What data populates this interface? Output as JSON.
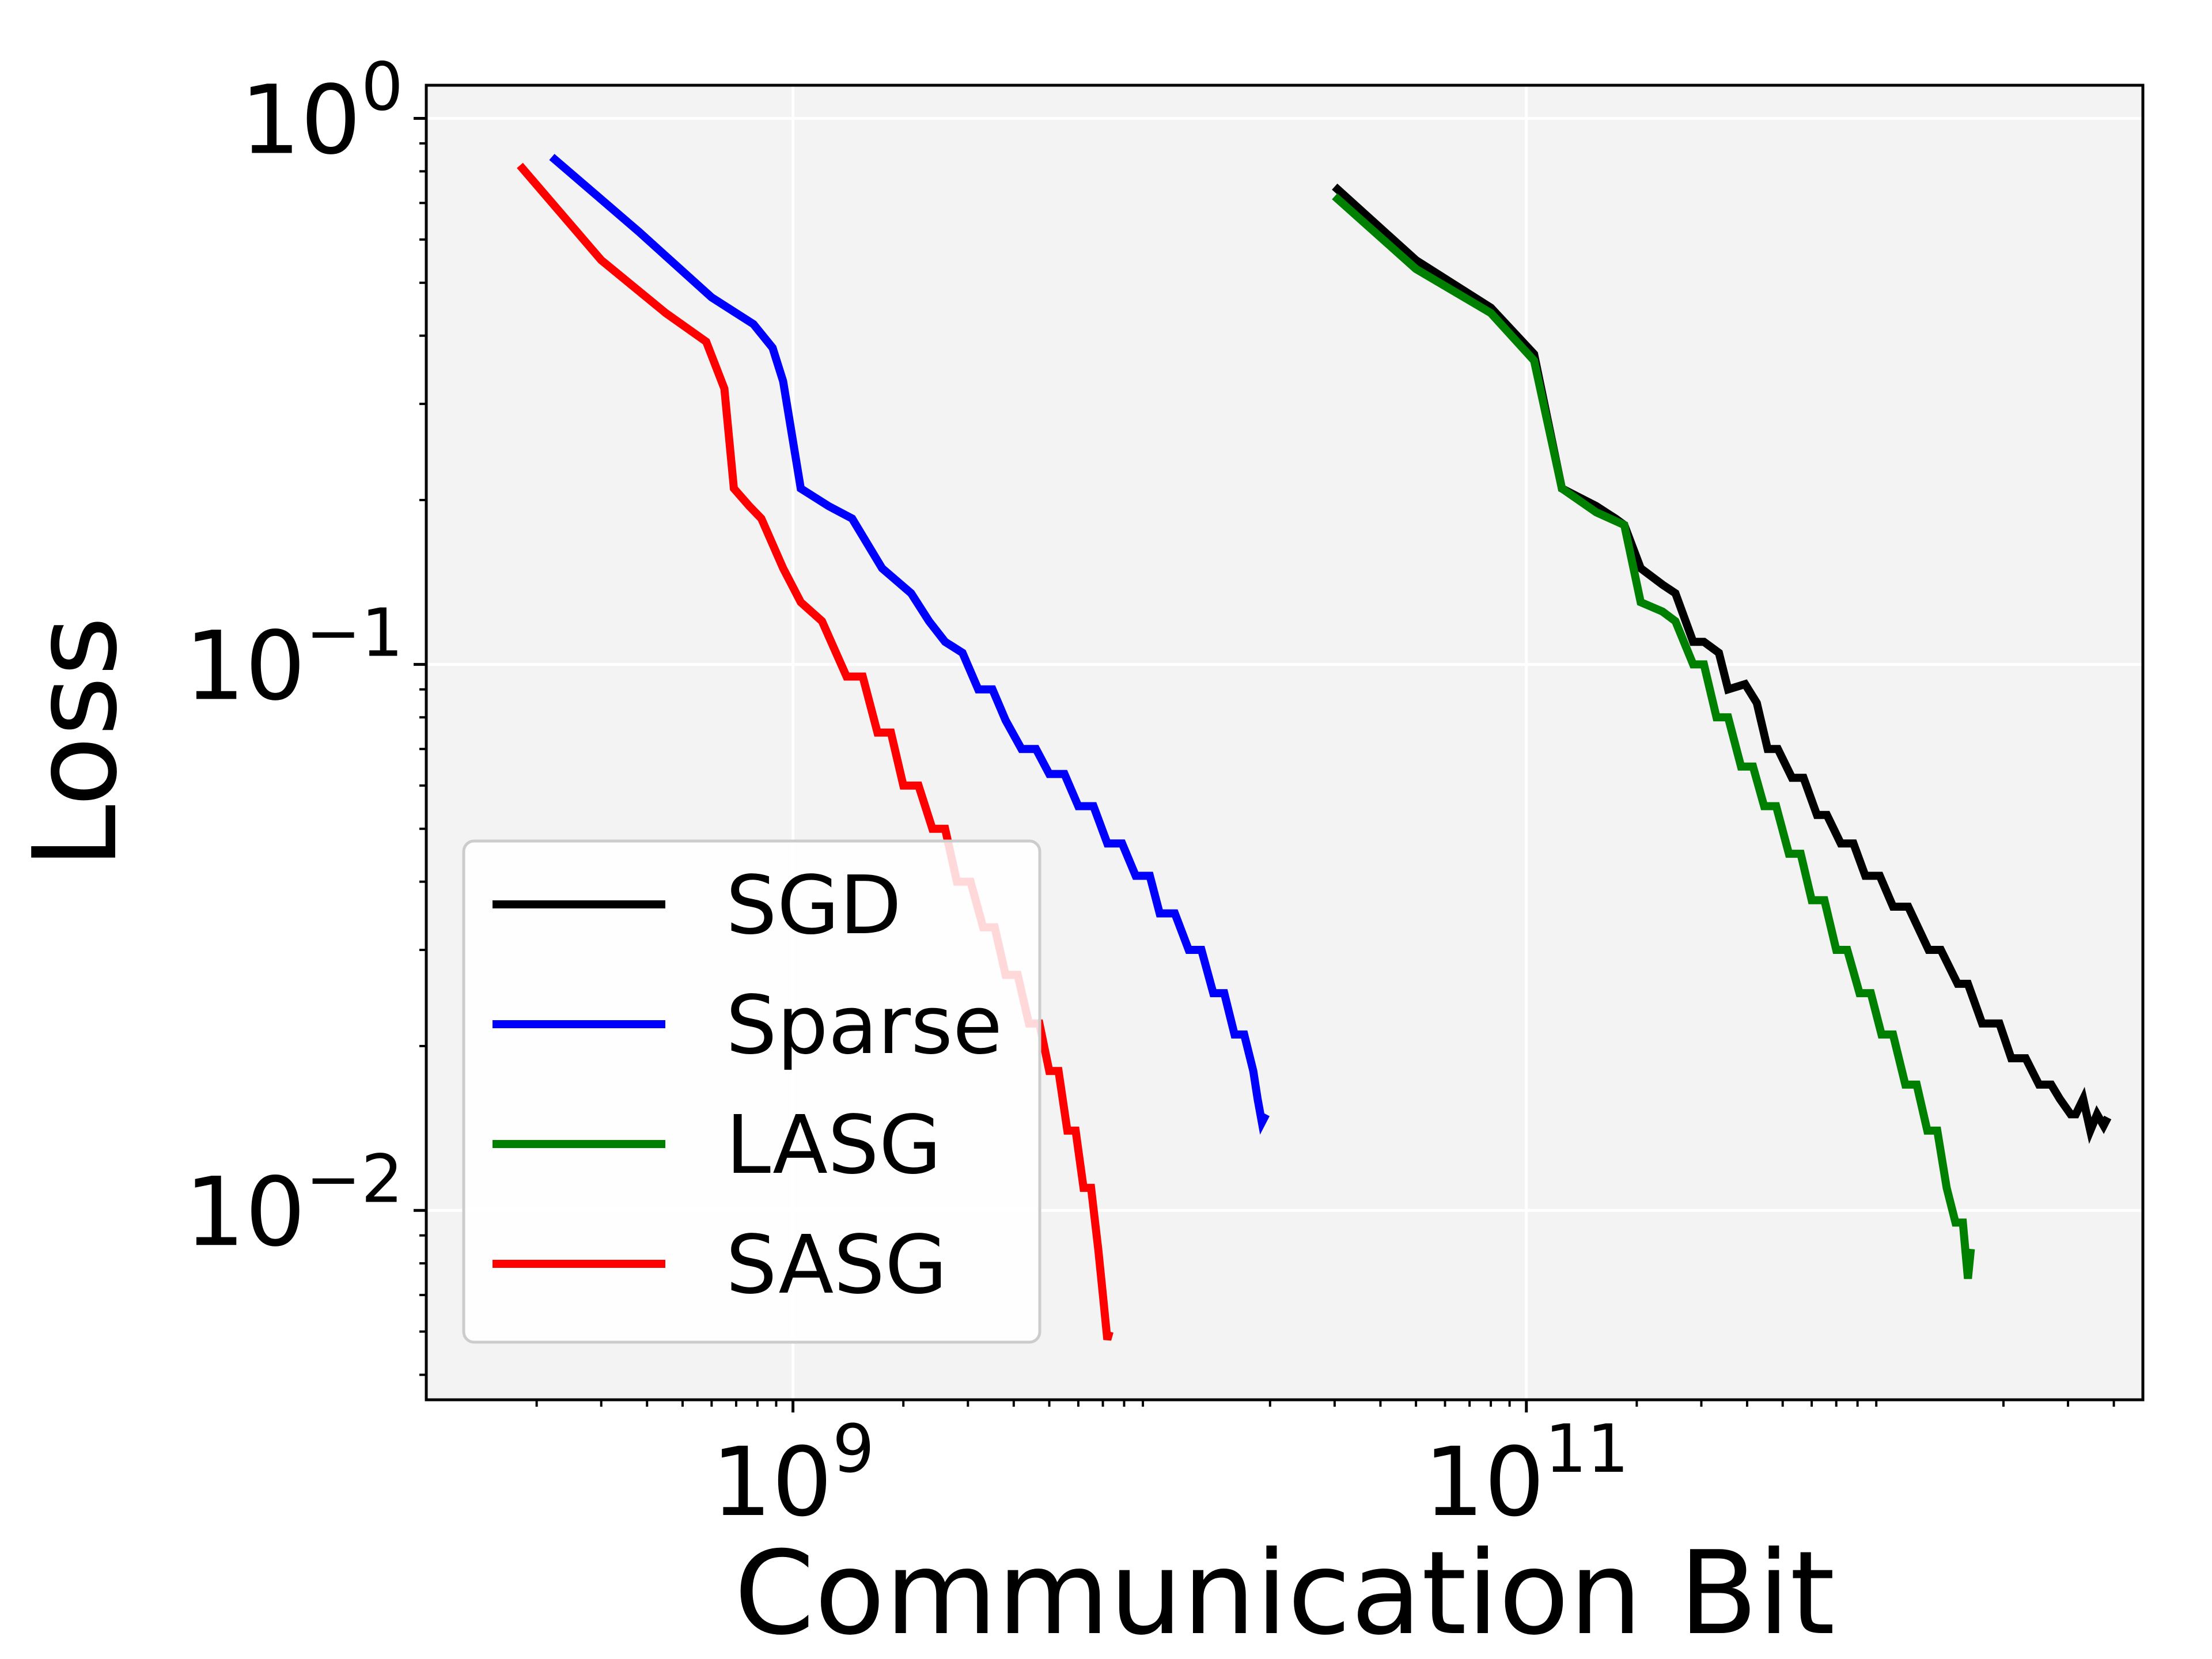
{
  "chart_data": {
    "type": "line",
    "title": "",
    "xlabel": "Communication Bit",
    "ylabel": "Loss",
    "xscale": "log",
    "yscale": "log",
    "xlim": [
      100000000.0,
      4800000000000.0
    ],
    "ylim": [
      0.0045,
      1.15
    ],
    "grid": true,
    "legend_position": "lower-left",
    "x_ticks": [
      {
        "value": 1000000000.0,
        "base": "10",
        "exp": "9"
      },
      {
        "value": 100000000000.0,
        "base": "10",
        "exp": "11"
      }
    ],
    "y_ticks": [
      {
        "value": 1,
        "base": "10",
        "exp": "0"
      },
      {
        "value": 0.1,
        "base": "10",
        "exp": "−1"
      },
      {
        "value": 0.01,
        "base": "10",
        "exp": "−2"
      }
    ],
    "series": [
      {
        "name": "SGD",
        "color": "#000000",
        "x": [
          30000000000.0,
          50000000000.0,
          80000000000.0,
          105000000000.0,
          125000000000.0,
          155000000000.0,
          175000000000.0,
          185000000000.0,
          205000000000.0,
          235000000000.0,
          255000000000.0,
          285000000000.0,
          305000000000.0,
          335000000000.0,
          355000000000.0,
          395000000000.0,
          425000000000.0,
          455000000000.0,
          485000000000.0,
          530000000000.0,
          570000000000.0,
          620000000000.0,
          660000000000.0,
          720000000000.0,
          780000000000.0,
          840000000000.0,
          920000000000.0,
          1000000000000.0,
          1100000000000.0,
          1250000000000.0,
          1350000000000.0,
          1500000000000.0,
          1600000000000.0,
          1750000000000.0,
          1950000000000.0,
          2100000000000.0,
          2300000000000.0,
          2500000000000.0,
          2700000000000.0,
          2850000000000.0,
          3050000000000.0,
          3150000000000.0,
          3300000000000.0,
          3450000000000.0,
          3600000000000.0,
          3750000000000.0,
          3850000000000.0
        ],
        "y": [
          0.75,
          0.55,
          0.45,
          0.37,
          0.21,
          0.195,
          0.185,
          0.18,
          0.15,
          0.14,
          0.135,
          0.11,
          0.11,
          0.105,
          0.09,
          0.092,
          0.085,
          0.07,
          0.07,
          0.062,
          0.062,
          0.053,
          0.053,
          0.047,
          0.047,
          0.041,
          0.041,
          0.036,
          0.036,
          0.03,
          0.03,
          0.026,
          0.026,
          0.022,
          0.022,
          0.019,
          0.019,
          0.017,
          0.017,
          0.016,
          0.015,
          0.015,
          0.016,
          0.014,
          0.015,
          0.0143,
          0.0148
        ]
      },
      {
        "name": "Sparse",
        "color": "#0000ff",
        "x": [
          220000000.0,
          380000000.0,
          600000000.0,
          780000000.0,
          880000000.0,
          940000000.0,
          1050000000.0,
          1250000000.0,
          1450000000.0,
          1750000000.0,
          2100000000.0,
          2350000000.0,
          2600000000.0,
          2900000000.0,
          3200000000.0,
          3500000000.0,
          3800000000.0,
          4200000000.0,
          4600000000.0,
          5000000000.0,
          5500000000.0,
          6000000000.0,
          6600000000.0,
          7200000000.0,
          7900000000.0,
          8600000000.0,
          9400000000.0,
          10000000000.0,
          11000000000.0,
          12000000000.0,
          13000000000.0,
          14000000000.0,
          15000000000.0,
          16000000000.0,
          17000000000.0,
          18000000000.0,
          18500000000.0,
          19000000000.0,
          19500000000.0
        ],
        "y": [
          0.85,
          0.62,
          0.47,
          0.42,
          0.38,
          0.33,
          0.21,
          0.195,
          0.185,
          0.15,
          0.135,
          0.12,
          0.11,
          0.105,
          0.09,
          0.09,
          0.079,
          0.07,
          0.07,
          0.063,
          0.063,
          0.055,
          0.055,
          0.047,
          0.047,
          0.041,
          0.041,
          0.035,
          0.035,
          0.03,
          0.03,
          0.025,
          0.025,
          0.021,
          0.021,
          0.018,
          0.016,
          0.0145,
          0.015
        ]
      },
      {
        "name": "LASG",
        "color": "#008000",
        "x": [
          30000000000.0,
          50000000000.0,
          80000000000.0,
          105000000000.0,
          125000000000.0,
          155000000000.0,
          185000000000.0,
          205000000000.0,
          235000000000.0,
          255000000000.0,
          285000000000.0,
          305000000000.0,
          330000000000.0,
          355000000000.0,
          385000000000.0,
          415000000000.0,
          445000000000.0,
          480000000000.0,
          520000000000.0,
          560000000000.0,
          600000000000.0,
          650000000000.0,
          700000000000.0,
          750000000000.0,
          810000000000.0,
          870000000000.0,
          930000000000.0,
          1000000000000.0,
          1080000000000.0,
          1160000000000.0,
          1240000000000.0,
          1320000000000.0,
          1400000000000.0,
          1480000000000.0,
          1550000000000.0,
          1600000000000.0,
          1630000000000.0
        ],
        "y": [
          0.72,
          0.53,
          0.44,
          0.36,
          0.21,
          0.19,
          0.18,
          0.13,
          0.125,
          0.12,
          0.1,
          0.1,
          0.08,
          0.08,
          0.065,
          0.065,
          0.055,
          0.055,
          0.045,
          0.045,
          0.037,
          0.037,
          0.03,
          0.03,
          0.025,
          0.025,
          0.021,
          0.021,
          0.017,
          0.017,
          0.014,
          0.014,
          0.011,
          0.0095,
          0.0095,
          0.0075,
          0.0085
        ]
      },
      {
        "name": "SASG",
        "color": "#ff0000",
        "x": [
          180000000.0,
          300000000.0,
          450000000.0,
          580000000.0,
          650000000.0,
          690000000.0,
          760000000.0,
          820000000.0,
          940000000.0,
          1050000000.0,
          1200000000.0,
          1400000000.0,
          1550000000.0,
          1700000000.0,
          1850000000.0,
          2000000000.0,
          2200000000.0,
          2400000000.0,
          2600000000.0,
          2800000000.0,
          3050000000.0,
          3300000000.0,
          3550000000.0,
          3800000000.0,
          4100000000.0,
          4400000000.0,
          4700000000.0,
          5000000000.0,
          5300000000.0,
          5600000000.0,
          5900000000.0,
          6200000000.0,
          6500000000.0,
          6800000000.0,
          7000000000.0,
          7200000000.0,
          7300000000.0
        ],
        "y": [
          0.82,
          0.55,
          0.44,
          0.39,
          0.32,
          0.21,
          0.195,
          0.185,
          0.15,
          0.13,
          0.12,
          0.095,
          0.095,
          0.075,
          0.075,
          0.06,
          0.06,
          0.05,
          0.05,
          0.04,
          0.04,
          0.033,
          0.033,
          0.027,
          0.027,
          0.022,
          0.022,
          0.018,
          0.018,
          0.014,
          0.014,
          0.011,
          0.011,
          0.0085,
          0.007,
          0.0058,
          0.006
        ]
      }
    ]
  }
}
